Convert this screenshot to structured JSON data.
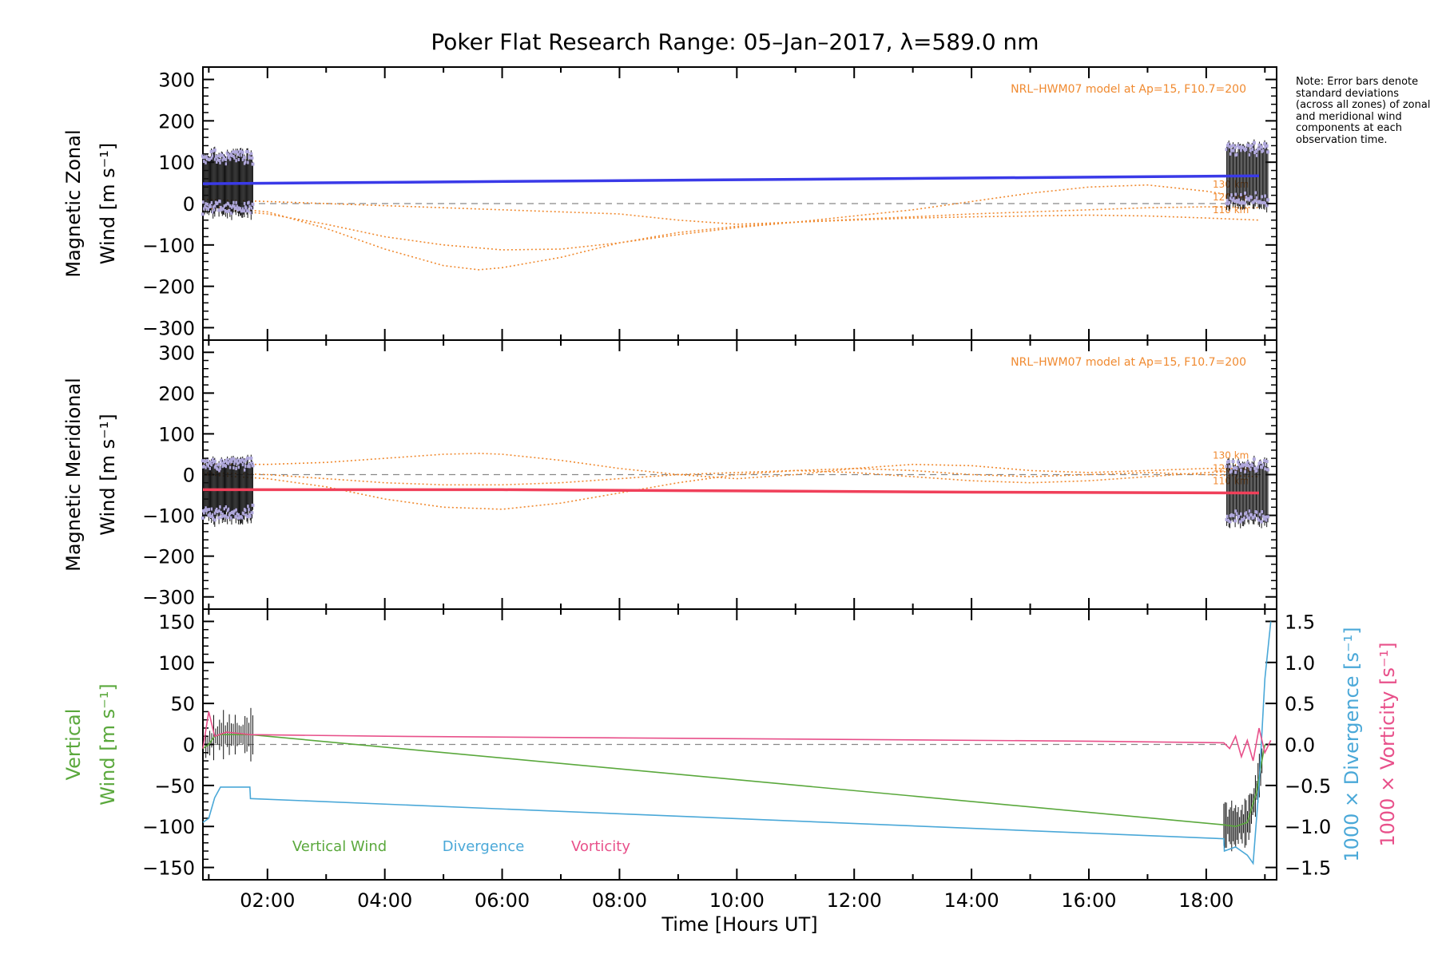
{
  "title": "Poker Flat Research Range: 05–Jan–2017, λ=589.0 nm",
  "note": "Note: Error bars denote standard deviations (across all zones) of zonal and meridional wind components at each observation time.",
  "colors": {
    "zonal": "#3a3ae8",
    "meridional": "#f0405a",
    "model": "#f08a30",
    "errbar": "#111111",
    "obs": "#b0a8dc",
    "vertical": "#5aa83c",
    "divergence": "#4aa8d8",
    "vorticity": "#e8508a",
    "zero": "#888888"
  },
  "chart_data": [
    {
      "type": "line",
      "panel": "zonal",
      "ylabel": "Magnetic Zonal",
      "ylabel2": "Wind [m s⁻¹]",
      "ylim": [
        -330,
        330
      ],
      "yticks": [
        "300",
        "200",
        "100",
        "0",
        "−100",
        "−200",
        "−300"
      ],
      "model_label": "NRL–HWM07 model at Ap=15, F10.7=200",
      "altitude_labels": [
        "130 km",
        "120 km",
        "110 km"
      ],
      "series": [
        {
          "name": "",
          "role": "fit",
          "x": [
            0.9,
            18.9
          ],
          "y": [
            48,
            67
          ]
        },
        {
          "name": "110 km",
          "role": "model",
          "x": [
            0.9,
            2,
            3,
            4,
            5,
            5.6,
            6,
            7,
            8,
            9,
            10,
            11,
            12,
            13,
            14,
            15,
            16,
            17,
            18,
            18.9
          ],
          "y": [
            -5,
            -20,
            -60,
            -110,
            -150,
            -160,
            -155,
            -130,
            -95,
            -70,
            -55,
            -45,
            -40,
            -35,
            -32,
            -30,
            -28,
            -30,
            -35,
            -40
          ]
        },
        {
          "name": "120 km",
          "role": "model",
          "x": [
            0.9,
            2,
            3,
            4,
            5,
            6,
            7,
            8,
            9,
            10,
            11,
            12,
            13,
            14,
            15,
            16,
            17,
            18,
            18.9
          ],
          "y": [
            -10,
            -25,
            -50,
            -80,
            -100,
            -112,
            -110,
            -95,
            -75,
            -58,
            -45,
            -38,
            -32,
            -25,
            -20,
            -15,
            -10,
            -8,
            -10
          ]
        },
        {
          "name": "130 km",
          "role": "model",
          "x": [
            0.9,
            2,
            3,
            4,
            5,
            6,
            7,
            8,
            9,
            10,
            11,
            12,
            13,
            14,
            15,
            16,
            17,
            18,
            18.9
          ],
          "y": [
            10,
            5,
            0,
            -5,
            -10,
            -15,
            -20,
            -25,
            -40,
            -50,
            -45,
            -30,
            -15,
            5,
            25,
            40,
            45,
            30,
            10
          ]
        }
      ]
    },
    {
      "type": "line",
      "panel": "meridional",
      "ylabel": "Magnetic Meridional",
      "ylabel2": "Wind [m s⁻¹]",
      "ylim": [
        -330,
        330
      ],
      "yticks": [
        "300",
        "200",
        "100",
        "0",
        "−100",
        "−200",
        "−300"
      ],
      "model_label": "NRL–HWM07 model at Ap=15, F10.7=200",
      "altitude_labels": [
        "130 km",
        "120 km",
        "110 km"
      ],
      "series": [
        {
          "name": "",
          "role": "fit",
          "x": [
            0.9,
            6,
            10,
            14,
            18.9
          ],
          "y": [
            -37,
            -37,
            -40,
            -43,
            -45
          ]
        },
        {
          "name": "130 km",
          "role": "model",
          "x": [
            0.9,
            2,
            3,
            4,
            5,
            5.6,
            6,
            7,
            8,
            9,
            10,
            11,
            12,
            13,
            14,
            15,
            16,
            17,
            18,
            18.9
          ],
          "y": [
            25,
            25,
            30,
            40,
            50,
            52,
            50,
            35,
            15,
            0,
            -10,
            0,
            15,
            25,
            22,
            10,
            5,
            10,
            15,
            15
          ]
        },
        {
          "name": "120 km",
          "role": "model",
          "x": [
            0.9,
            2,
            3,
            4,
            5,
            6,
            7,
            8,
            9,
            10,
            11,
            12,
            13,
            14,
            15,
            16,
            17,
            18,
            18.9
          ],
          "y": [
            5,
            0,
            -10,
            -20,
            -25,
            -25,
            -20,
            -10,
            0,
            5,
            10,
            5,
            -5,
            -15,
            -20,
            -15,
            -5,
            5,
            10
          ]
        },
        {
          "name": "110 km",
          "role": "model",
          "x": [
            0.9,
            2,
            3,
            4,
            5,
            6,
            7,
            8,
            9,
            10,
            11,
            12,
            13,
            14,
            15,
            16,
            17,
            18,
            18.9
          ],
          "y": [
            0,
            -10,
            -30,
            -60,
            -80,
            -85,
            -70,
            -45,
            -20,
            0,
            10,
            15,
            10,
            0,
            -5,
            0,
            5,
            0,
            -5
          ]
        }
      ]
    },
    {
      "type": "line",
      "panel": "vertical",
      "ylabel": "Vertical",
      "ylabel2": "Wind [m s⁻¹]",
      "ylim": [
        -165,
        165
      ],
      "yticks": [
        "150",
        "100",
        "50",
        "0",
        "−50",
        "−100",
        "−150"
      ],
      "y2lim": [
        -1.65,
        1.65
      ],
      "y2ticks": [
        "1.5",
        "1.0",
        "0.5",
        "0.0",
        "−0.5",
        "−1.0",
        "−1.5"
      ],
      "y2label_div": "1000 × Divergence [s⁻¹]",
      "y2label_vort": "1000 × Vorticity [s⁻¹]",
      "xlabel": "Time [Hours UT]",
      "xlim": [
        0.9,
        19.2
      ],
      "xticks": [
        "02:00",
        "04:00",
        "06:00",
        "08:00",
        "10:00",
        "12:00",
        "14:00",
        "16:00",
        "18:00"
      ],
      "legend": [
        "Vertical Wind",
        "Divergence",
        "Vorticity"
      ],
      "series": [
        {
          "name": "Vertical Wind",
          "axis": "left",
          "x": [
            0.9,
            1.0,
            1.1,
            1.2,
            1.4,
            1.7,
            18.3,
            18.5,
            18.7,
            18.85,
            19.0
          ],
          "y": [
            -5,
            0,
            10,
            12,
            12,
            12,
            -98,
            -100,
            -95,
            -60,
            0
          ]
        },
        {
          "name": "Divergence",
          "axis": "right",
          "x": [
            0.9,
            1.0,
            1.1,
            1.2,
            1.4,
            1.7,
            1.71,
            18.3,
            18.31,
            18.5,
            18.7,
            18.8,
            18.9,
            19.0,
            19.1
          ],
          "y": [
            -0.95,
            -0.9,
            -0.65,
            -0.52,
            -0.52,
            -0.52,
            -0.66,
            -1.15,
            -1.3,
            -1.25,
            -1.35,
            -1.45,
            -0.5,
            0.8,
            1.5
          ]
        },
        {
          "name": "Vorticity",
          "axis": "right",
          "x": [
            0.9,
            1.0,
            1.1,
            1.3,
            1.7,
            4,
            8,
            12,
            16,
            18.3,
            18.4,
            18.5,
            18.6,
            18.7,
            18.8,
            18.9,
            19.0,
            19.1
          ],
          "y": [
            -0.05,
            0.4,
            0.1,
            0.15,
            0.12,
            0.1,
            0.08,
            0.06,
            0.04,
            0.02,
            -0.05,
            0.1,
            -0.15,
            0.05,
            -0.2,
            0.2,
            -0.1,
            0.05
          ]
        }
      ]
    }
  ]
}
